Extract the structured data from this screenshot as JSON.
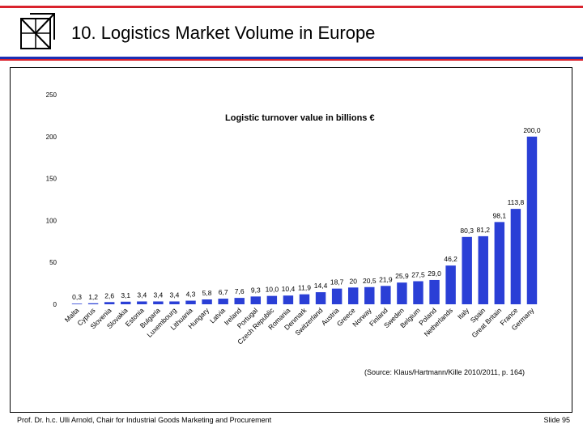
{
  "slide": {
    "title": "10. Logistics Market Volume in Europe",
    "source_note": "(Source: Klaus/Hartmann/Kille 2010/2011, p. 164)",
    "footer_left": "Prof. Dr. h.c. Ulli Arnold, Chair for Industrial Goods Marketing and Procurement",
    "footer_right": "Slide 95"
  },
  "colors": {
    "accent_red": "#d9232d",
    "accent_blue": "#1c2fb4",
    "bar": "#2a3fd6"
  },
  "chart_data": {
    "type": "bar",
    "title": "Logistic turnover value in billions €",
    "categories": [
      "Malta",
      "Cyprus",
      "Slovenia",
      "Slovakia",
      "Estonia",
      "Bulgaria",
      "Luxembourg",
      "Lithuania",
      "Hungary",
      "Latvia",
      "Ireland",
      "Portugal",
      "Czech Republic",
      "Romania",
      "Denmark",
      "Switzerland",
      "Austria",
      "Greece",
      "Norway",
      "Finland",
      "Sweden",
      "Belgium",
      "Poland",
      "Netherlands",
      "Italy",
      "Spain",
      "Great Britain",
      "France",
      "Germany"
    ],
    "values": [
      0.3,
      1.2,
      2.6,
      3.1,
      3.4,
      3.4,
      3.4,
      4.3,
      5.8,
      6.7,
      7.6,
      9.3,
      10.0,
      10.4,
      11.9,
      14.4,
      18.7,
      20,
      20.5,
      21.9,
      25.9,
      27.5,
      29.0,
      46.2,
      80.3,
      81.2,
      98.1,
      113.8,
      200.0
    ],
    "value_labels": [
      "0,3",
      "1,2",
      "2,6",
      "3,1",
      "3,4",
      "3,4",
      "3,4",
      "4,3",
      "5,8",
      "6,7",
      "7,6",
      "9,3",
      "10,0",
      "10,4",
      "11,9",
      "14,4",
      "18,7",
      "20",
      "20,5",
      "21,9",
      "25,9",
      "27,5",
      "29,0",
      "46,2",
      "80,3",
      "81,2",
      "98,1",
      "113,8",
      "200,0"
    ],
    "yticks": [
      "0",
      "50",
      "100",
      "150",
      "200",
      "250"
    ],
    "ylim": [
      0,
      250
    ],
    "grid": false,
    "legend": "none"
  }
}
